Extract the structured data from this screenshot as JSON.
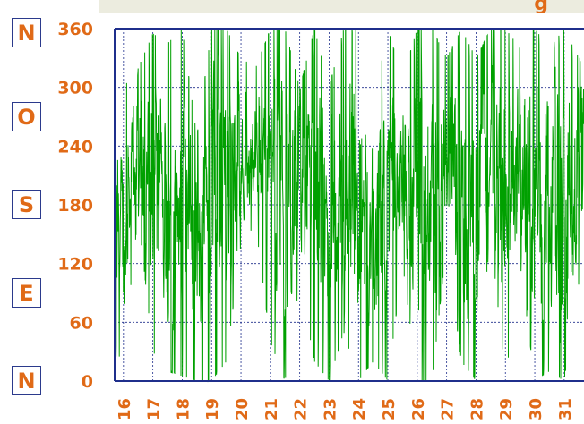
{
  "chart_data": {
    "type": "line",
    "title": "",
    "title_visible_fragment": "g",
    "xlabel": "",
    "ylabel": "",
    "y_ticks": [
      0,
      60,
      120,
      180,
      240,
      300,
      360
    ],
    "ylim": [
      0,
      360
    ],
    "x_tick_labels": [
      "16",
      "17",
      "18",
      "19",
      "20",
      "21",
      "22",
      "23",
      "24",
      "25",
      "26",
      "27",
      "28",
      "29",
      "30",
      "31"
    ],
    "direction_labels": [
      "N",
      "O",
      "S",
      "E",
      "N"
    ],
    "grid": true,
    "legend": "none",
    "series": [
      {
        "color": "#00a000",
        "line_style": "solid",
        "description_note": "",
        "envelope": [
          {
            "day": 16.0,
            "low": 25,
            "high": 300
          },
          {
            "day": 16.5,
            "low": 170,
            "high": 320
          },
          {
            "day": 17.0,
            "low": 30,
            "high": 355
          },
          {
            "day": 17.5,
            "low": 10,
            "high": 345
          },
          {
            "day": 18.0,
            "low": 5,
            "high": 360
          },
          {
            "day": 18.5,
            "low": 0,
            "high": 250
          },
          {
            "day": 19.0,
            "low": 0,
            "high": 360
          },
          {
            "day": 19.5,
            "low": 20,
            "high": 360
          },
          {
            "day": 20.0,
            "low": 140,
            "high": 330
          },
          {
            "day": 20.5,
            "low": 160,
            "high": 320
          },
          {
            "day": 21.0,
            "low": 40,
            "high": 360
          },
          {
            "day": 21.5,
            "low": 0,
            "high": 360
          },
          {
            "day": 22.0,
            "low": 100,
            "high": 300
          },
          {
            "day": 22.5,
            "low": 20,
            "high": 360
          },
          {
            "day": 23.0,
            "low": 0,
            "high": 300
          },
          {
            "day": 23.5,
            "low": 50,
            "high": 360
          },
          {
            "day": 24.0,
            "low": 0,
            "high": 360
          },
          {
            "day": 24.5,
            "low": 20,
            "high": 280
          },
          {
            "day": 25.0,
            "low": 0,
            "high": 360
          },
          {
            "day": 25.5,
            "low": 120,
            "high": 310
          },
          {
            "day": 26.0,
            "low": 0,
            "high": 360
          },
          {
            "day": 26.5,
            "low": 0,
            "high": 360
          },
          {
            "day": 27.0,
            "low": 140,
            "high": 330
          },
          {
            "day": 27.5,
            "low": 20,
            "high": 360
          },
          {
            "day": 28.0,
            "low": 0,
            "high": 330
          },
          {
            "day": 28.5,
            "low": 150,
            "high": 360
          },
          {
            "day": 29.0,
            "low": 0,
            "high": 360
          },
          {
            "day": 29.5,
            "low": 120,
            "high": 340
          },
          {
            "day": 30.0,
            "low": 0,
            "high": 360
          },
          {
            "day": 30.5,
            "low": 10,
            "high": 340
          },
          {
            "day": 31.0,
            "low": 0,
            "high": 360
          },
          {
            "day": 31.5,
            "low": 100,
            "high": 330
          }
        ]
      }
    ]
  },
  "colors": {
    "axis": "#1f2f8c",
    "grid": "#1f2f8c",
    "series": "#00a000",
    "labels": "#e06a17",
    "title_band": "#ececdf"
  }
}
